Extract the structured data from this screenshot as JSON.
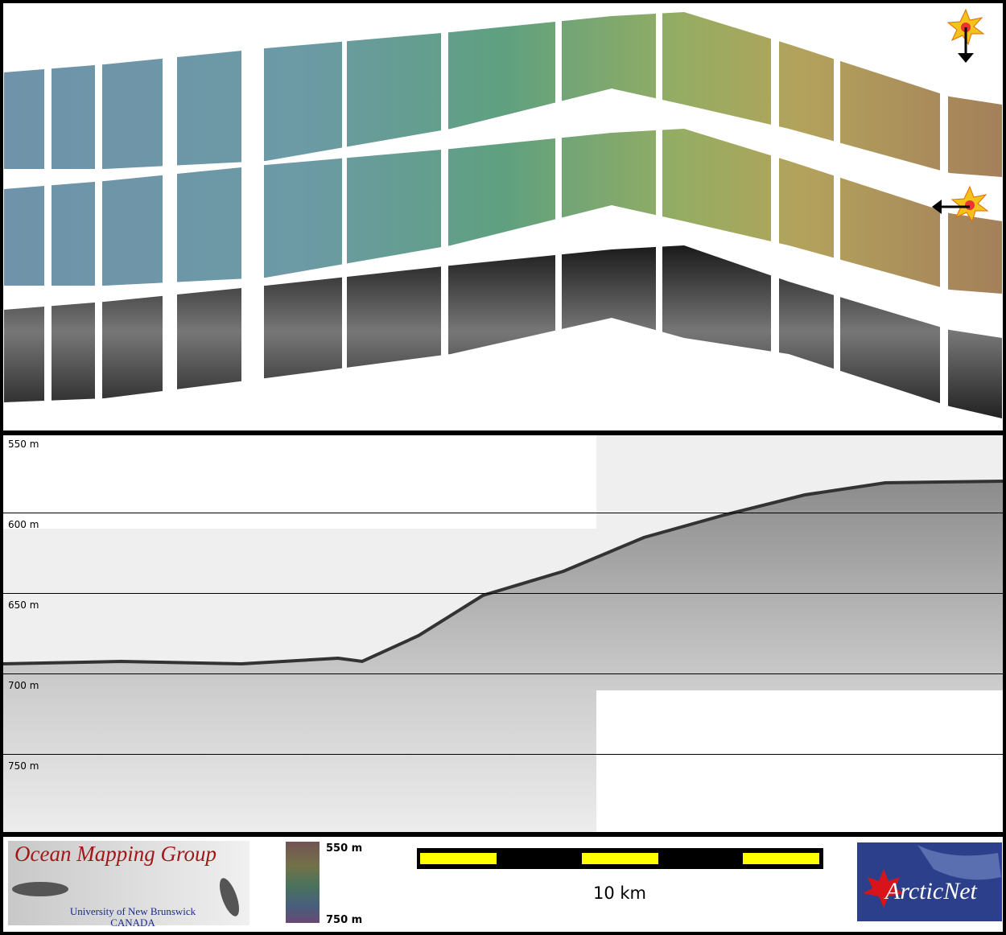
{
  "profile": {
    "depth_labels": [
      "550 m",
      "600 m",
      "650 m",
      "700 m",
      "750 m"
    ]
  },
  "logo": {
    "title": "Ocean Mapping Group",
    "university": "University of New Brunswick",
    "country": "CANADA"
  },
  "colorbar": {
    "top_label": "550 m",
    "bottom_label": "750 m"
  },
  "scale_bar": {
    "label": "10 km"
  },
  "partner": {
    "name": "ArcticNet"
  }
}
